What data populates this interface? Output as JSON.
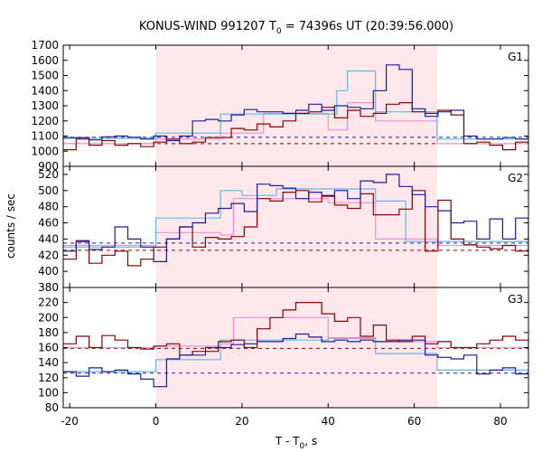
{
  "chart_data": {
    "type": "line",
    "title_main": "KONUS-WIND 991207 T",
    "title_sub": "0",
    "title_rest": " = 74396s UT (20:39:56.000)",
    "xlabel_main": "T - T",
    "xlabel_sub": "0",
    "xlabel_rest": ", s",
    "ylabel": "counts / sec",
    "xlim": [
      -21.5,
      86.5
    ],
    "xticks": [
      -20,
      0,
      20,
      40,
      60,
      80
    ],
    "highlight_interval": [
      0,
      65.3
    ],
    "colors": {
      "blue": "#1c1c9c",
      "red": "#8b0000",
      "cyan": "#5fb8e6",
      "pink": "#e890d8",
      "shade": "#ffe8ec"
    },
    "panels": [
      {
        "tag": "G1",
        "ylim": [
          900,
          1700
        ],
        "yticks": [
          900,
          1000,
          1100,
          1200,
          1300,
          1400,
          1500,
          1600,
          1700
        ],
        "background": {
          "blue": 1092,
          "red": 1050
        },
        "blue_x0": -21.5,
        "blue_dx": 3.0,
        "blue_values": [
          1090,
          1090,
          1075,
          1095,
          1100,
          1092,
          1080,
          1100,
          1070,
          1100,
          1200,
          1210,
          1200,
          1240,
          1275,
          1260,
          1260,
          1250,
          1270,
          1310,
          1270,
          1300,
          1290,
          1280,
          1400,
          1570,
          1540,
          1280,
          1230,
          1260,
          1270,
          1100,
          1080,
          1080,
          1090,
          1080,
          1100,
          1080,
          1090,
          1080,
          1060
        ],
        "red_x0": -21.5,
        "red_dx": 3.0,
        "red_values": [
          1010,
          1080,
          1040,
          1070,
          1040,
          1050,
          1030,
          1060,
          1080,
          1050,
          1060,
          1090,
          1090,
          1150,
          1140,
          1180,
          1160,
          1200,
          1250,
          1260,
          1290,
          1220,
          1270,
          1230,
          1250,
          1310,
          1320,
          1260,
          1250,
          1270,
          1240,
          1050,
          1060,
          1040,
          1010,
          1060,
          1050,
          1070,
          1010,
          1080,
          1020
        ],
        "cyan_steps": [
          [
            -21.5,
            1085
          ],
          [
            0,
            1120
          ],
          [
            15,
            1245
          ],
          [
            42,
            1400
          ],
          [
            44.5,
            1530
          ],
          [
            51,
            1260
          ],
          [
            65.3,
            1080
          ],
          [
            86.5,
            1080
          ]
        ],
        "pink_steps": [
          [
            -21.5,
            1050
          ],
          [
            0,
            1080
          ],
          [
            15,
            1120
          ],
          [
            25,
            1250
          ],
          [
            40,
            1140
          ],
          [
            44.5,
            1320
          ],
          [
            51,
            1200
          ],
          [
            65.3,
            1050
          ],
          [
            86.5,
            1050
          ]
        ]
      },
      {
        "tag": "G2",
        "ylim": [
          380,
          530
        ],
        "yticks": [
          380,
          400,
          420,
          440,
          460,
          480,
          500,
          520
        ],
        "background": {
          "blue": 435,
          "red": 426
        },
        "blue_x0": -21.5,
        "blue_dx": 3.0,
        "blue_values": [
          425,
          438,
          427,
          430,
          455,
          440,
          430,
          412,
          440,
          455,
          460,
          472,
          478,
          484,
          474,
          508,
          506,
          503,
          490,
          498,
          494,
          500,
          490,
          512,
          510,
          520,
          505,
          495,
          480,
          475,
          460,
          462,
          440,
          465,
          440,
          466,
          412,
          440,
          426,
          430,
          428
        ],
        "red_x0": -21.5,
        "red_dx": 3.0,
        "red_values": [
          415,
          437,
          410,
          420,
          425,
          407,
          415,
          430,
          440,
          455,
          430,
          442,
          440,
          443,
          455,
          490,
          487,
          498,
          500,
          486,
          493,
          482,
          478,
          496,
          470,
          470,
          477,
          500,
          425,
          488,
          440,
          433,
          430,
          428,
          432,
          425,
          430,
          436,
          430,
          426,
          420
        ],
        "cyan_steps": [
          [
            -21.5,
            430
          ],
          [
            0,
            466
          ],
          [
            15,
            500
          ],
          [
            20,
            494
          ],
          [
            28,
            502
          ],
          [
            51,
            487
          ],
          [
            58,
            437
          ],
          [
            65.3,
            437
          ],
          [
            86.5,
            438
          ]
        ],
        "pink_steps": [
          [
            -21.5,
            432
          ],
          [
            0,
            448
          ],
          [
            15,
            445
          ],
          [
            18,
            490
          ],
          [
            40,
            485
          ],
          [
            51,
            440
          ],
          [
            65.3,
            432
          ],
          [
            86.5,
            432
          ]
        ]
      },
      {
        "tag": "G3",
        "ylim": [
          80,
          240
        ],
        "yticks": [
          80,
          100,
          120,
          140,
          160,
          180,
          200,
          220
        ],
        "background": {
          "blue": 126,
          "red": 159
        },
        "blue_x0": -21.5,
        "blue_dx": 3.0,
        "blue_values": [
          128,
          122,
          133,
          128,
          130,
          125,
          118,
          108,
          145,
          150,
          150,
          160,
          160,
          164,
          165,
          168,
          168,
          172,
          178,
          174,
          168,
          170,
          168,
          170,
          168,
          168,
          170,
          170,
          150,
          147,
          145,
          150,
          125,
          130,
          133,
          125,
          130,
          130,
          125,
          140,
          120
        ],
        "red_x0": -21.5,
        "red_dx": 3.0,
        "red_values": [
          165,
          175,
          160,
          176,
          170,
          160,
          158,
          162,
          165,
          150,
          155,
          155,
          168,
          170,
          160,
          185,
          200,
          210,
          220,
          220,
          205,
          195,
          200,
          175,
          190,
          170,
          168,
          175,
          165,
          168,
          160,
          160,
          165,
          170,
          175,
          170,
          162,
          160,
          165,
          150,
          160
        ],
        "cyan_steps": [
          [
            -21.5,
            128
          ],
          [
            0,
            144
          ],
          [
            15,
            170
          ],
          [
            40,
            173
          ],
          [
            51,
            152
          ],
          [
            65.3,
            130
          ],
          [
            86.5,
            130
          ]
        ],
        "pink_steps": [
          [
            -21.5,
            160
          ],
          [
            0,
            162
          ],
          [
            15,
            165
          ],
          [
            18,
            200
          ],
          [
            40,
            172
          ],
          [
            51,
            168
          ],
          [
            65.3,
            160
          ],
          [
            86.5,
            160
          ]
        ]
      }
    ]
  }
}
